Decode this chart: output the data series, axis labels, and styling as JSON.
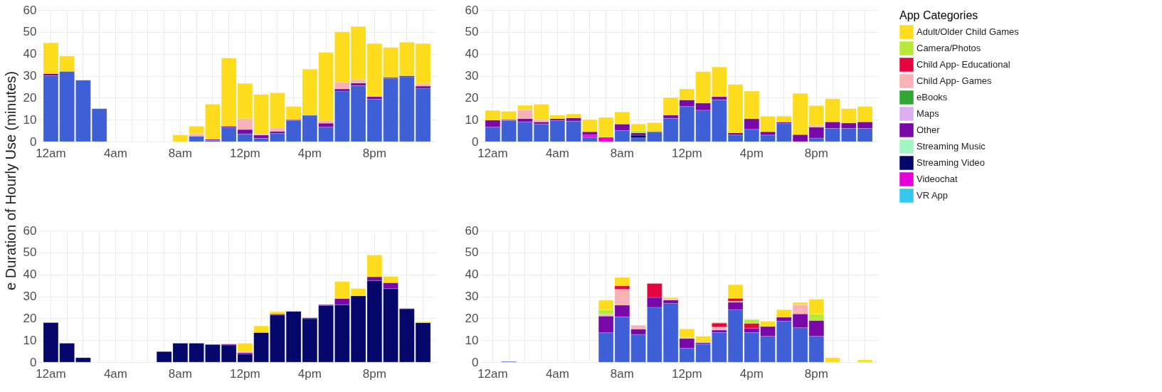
{
  "chart_data": [
    {
      "type": "bar",
      "stacked": true,
      "grid": true,
      "ylabel": "e Duration of Hourly Use (minutes)",
      "ylim": [
        0,
        60
      ],
      "yticks": [
        0,
        10,
        20,
        30,
        40,
        50,
        60
      ],
      "categories": [
        "12am",
        null,
        null,
        null,
        "4am",
        null,
        null,
        null,
        "8am",
        null,
        null,
        null,
        "12pm",
        null,
        null,
        null,
        "4pm",
        null,
        null,
        null,
        "8pm",
        null,
        null,
        null
      ],
      "series": [
        {
          "color": "#3f5fd7",
          "values": [
            30,
            32,
            28,
            15,
            null,
            null,
            null,
            null,
            null,
            2.5,
            0.5,
            6.3,
            3.5,
            1.5,
            3.7,
            9.7,
            12,
            6.6,
            23,
            25.5,
            19.3,
            28.8,
            29.5,
            24.3
          ]
        },
        {
          "color": "#7a08a8",
          "values": [
            1,
            null,
            null,
            null,
            null,
            null,
            null,
            null,
            null,
            null,
            0.5,
            0.7,
            2,
            1.5,
            1,
            0.3,
            null,
            1.8,
            1,
            1.2,
            1.2,
            0.5,
            0.5,
            1
          ]
        },
        {
          "color": "#f8b1b4",
          "values": [
            null,
            null,
            null,
            null,
            null,
            null,
            null,
            null,
            null,
            1,
            null,
            null,
            5,
            0.5,
            1.5,
            null,
            null,
            1.2,
            3,
            1.5,
            null,
            null,
            null,
            1
          ]
        },
        {
          "color": "#fcdc1c",
          "values": [
            14,
            7,
            null,
            null,
            null,
            null,
            null,
            null,
            3,
            3.5,
            16,
            31,
            16,
            18,
            16,
            6,
            21,
            31,
            23,
            24.3,
            24.2,
            13.6,
            15.3,
            18.4
          ]
        }
      ]
    },
    {
      "type": "bar",
      "stacked": true,
      "grid": true,
      "legend": "right",
      "legend_title": "App Categories",
      "ylim": [
        0,
        60
      ],
      "yticks": [
        0,
        10,
        20,
        30,
        40,
        50,
        60
      ],
      "categories": [
        "12am",
        null,
        null,
        null,
        "4am",
        null,
        null,
        null,
        "8am",
        null,
        null,
        null,
        "12pm",
        null,
        null,
        null,
        "4pm",
        null,
        null,
        null,
        "8pm",
        null,
        null,
        null
      ],
      "series": [
        {
          "color": "#3f5fd7",
          "values": [
            6.6,
            9.6,
            9,
            8,
            9.6,
            9.3,
            2,
            null,
            5,
            1.7,
            4.3,
            10.6,
            16,
            14.3,
            19,
            3,
            5.6,
            3,
            8.2,
            null,
            1.6,
            6,
            6,
            6
          ]
        },
        {
          "name": "VR App",
          "color": "#33c8ec",
          "values": [
            null,
            null,
            null,
            null,
            null,
            null,
            null,
            null,
            null,
            null,
            null,
            null,
            null,
            null,
            null,
            null,
            null,
            null,
            null,
            null,
            null,
            null,
            null,
            null
          ]
        },
        {
          "name": "Videochat",
          "color": "#e600d8",
          "values": [
            null,
            null,
            null,
            null,
            null,
            null,
            1,
            2,
            null,
            null,
            null,
            null,
            null,
            null,
            null,
            null,
            null,
            null,
            null,
            null,
            null,
            null,
            null,
            null
          ]
        },
        {
          "name": "Streaming Video",
          "color": "#05076b",
          "values": [
            null,
            null,
            null,
            null,
            null,
            null,
            null,
            null,
            null,
            1.2,
            null,
            null,
            null,
            null,
            null,
            null,
            null,
            null,
            null,
            null,
            null,
            null,
            null,
            null
          ]
        },
        {
          "name": "Streaming Music",
          "color": "#a0f5c0",
          "values": [
            null,
            null,
            null,
            null,
            null,
            null,
            null,
            null,
            null,
            null,
            null,
            null,
            null,
            null,
            null,
            null,
            null,
            null,
            null,
            null,
            null,
            null,
            null,
            null
          ]
        },
        {
          "color": "#ef6b2b",
          "values": [
            null,
            null,
            null,
            null,
            null,
            null,
            null,
            null,
            null,
            null,
            null,
            null,
            null,
            null,
            null,
            null,
            null,
            null,
            null,
            null,
            null,
            null,
            null,
            null
          ]
        },
        {
          "name": "Other",
          "color": "#7a08a8",
          "values": [
            3.2,
            0.4,
            1.5,
            1,
            0.8,
            1.5,
            1.5,
            null,
            3,
            1.1,
            0.3,
            1.5,
            3,
            3.3,
            1.5,
            1,
            4.8,
            1.5,
            0.7,
            3.2,
            5,
            3,
            2.5,
            3
          ]
        },
        {
          "name": "Maps",
          "color": "#dcb0f0",
          "values": [
            null,
            null,
            null,
            null,
            null,
            null,
            null,
            null,
            null,
            null,
            null,
            null,
            null,
            null,
            null,
            null,
            null,
            null,
            null,
            null,
            null,
            null,
            null,
            null
          ]
        },
        {
          "name": "eBooks",
          "color": "#33a532",
          "values": [
            null,
            null,
            null,
            null,
            null,
            null,
            null,
            null,
            null,
            null,
            null,
            null,
            null,
            null,
            null,
            null,
            null,
            null,
            null,
            null,
            null,
            null,
            null,
            null
          ]
        },
        {
          "name": "Child App- Games",
          "color": "#f8b1b4",
          "values": [
            null,
            null,
            4,
            1,
            null,
            null,
            null,
            null,
            null,
            null,
            null,
            null,
            null,
            null,
            null,
            null,
            null,
            null,
            null,
            null,
            0.8,
            null,
            null,
            null
          ]
        },
        {
          "name": "Child App- Educational",
          "color": "#e3063f",
          "values": [
            null,
            null,
            null,
            null,
            null,
            null,
            null,
            null,
            null,
            null,
            null,
            null,
            null,
            null,
            null,
            null,
            null,
            null,
            null,
            null,
            null,
            null,
            null,
            null
          ]
        },
        {
          "name": "Camera/Photos",
          "color": "#b8e83a",
          "values": [
            null,
            null,
            null,
            null,
            null,
            null,
            null,
            null,
            null,
            1,
            null,
            null,
            null,
            null,
            null,
            null,
            null,
            null,
            null,
            null,
            null,
            null,
            null,
            null
          ]
        },
        {
          "name": "Adult/Older Child Games",
          "color": "#fcdc1c",
          "values": [
            4.4,
            3.8,
            2,
            7,
            1.6,
            1.8,
            5.5,
            9,
            5.5,
            3,
            4,
            8,
            5,
            14.3,
            13.5,
            22,
            12.6,
            7,
            2.7,
            18.8,
            9,
            10.5,
            6.5,
            7
          ]
        }
      ]
    },
    {
      "type": "bar",
      "stacked": true,
      "grid": true,
      "ylim": [
        0,
        60
      ],
      "yticks": [
        0,
        10,
        20,
        30,
        40,
        50,
        60
      ],
      "categories": [
        "12am",
        null,
        null,
        null,
        "4am",
        null,
        null,
        null,
        "8am",
        null,
        null,
        null,
        "12pm",
        null,
        null,
        null,
        "4pm",
        null,
        null,
        null,
        "8pm",
        null,
        null,
        null
      ],
      "series": [
        {
          "color": "#05076b",
          "values": [
            18,
            8.6,
            2,
            null,
            null,
            null,
            null,
            4.8,
            8.6,
            8.6,
            8,
            7.8,
            3.8,
            13.5,
            21.5,
            23.1,
            19.8,
            25.9,
            26.2,
            30.2,
            37.2,
            33.5,
            24.3,
            18
          ]
        },
        {
          "color": "#7a08a8",
          "values": [
            null,
            null,
            null,
            null,
            null,
            null,
            null,
            null,
            null,
            null,
            null,
            0.4,
            0.6,
            null,
            0.5,
            null,
            0.4,
            0.3,
            2.8,
            null,
            1.7,
            2.7,
            null,
            null
          ]
        },
        {
          "color": "#f8b1b4",
          "values": [
            null,
            null,
            null,
            null,
            null,
            null,
            null,
            null,
            null,
            null,
            null,
            null,
            0.4,
            null,
            null,
            null,
            null,
            null,
            null,
            null,
            null,
            null,
            0.4,
            null
          ]
        },
        {
          "color": "#fcdc1c",
          "values": [
            null,
            null,
            null,
            null,
            null,
            null,
            null,
            null,
            null,
            null,
            null,
            null,
            3.8,
            3,
            1,
            null,
            null,
            null,
            7.7,
            3.3,
            9.9,
            2.9,
            null,
            0.4
          ]
        }
      ]
    },
    {
      "type": "bar",
      "stacked": true,
      "grid": true,
      "ylim": [
        0,
        60
      ],
      "yticks": [
        0,
        10,
        20,
        30,
        40,
        50,
        60
      ],
      "categories": [
        "12am",
        null,
        null,
        null,
        "4am",
        null,
        null,
        null,
        "8am",
        null,
        null,
        null,
        "12pm",
        null,
        null,
        null,
        "4pm",
        null,
        null,
        null,
        "8pm",
        null,
        null,
        null
      ],
      "series": [
        {
          "color": "#3f5fd7",
          "values": [
            null,
            0.3,
            null,
            null,
            null,
            null,
            null,
            13.4,
            20.6,
            12.6,
            25,
            26.8,
            6.3,
            8.3,
            13.5,
            24,
            13.5,
            11.8,
            18.6,
            15.7,
            11.8,
            null,
            null,
            null
          ]
        },
        {
          "color": "#7a08a8",
          "values": [
            null,
            null,
            null,
            null,
            null,
            null,
            null,
            7.6,
            5.4,
            2.5,
            4.5,
            1.5,
            4.5,
            0.6,
            1.1,
            3.3,
            2,
            4.5,
            1.9,
            6.3,
            7.2,
            null,
            null,
            null
          ]
        },
        {
          "color": "#f8b1b4",
          "values": [
            null,
            null,
            null,
            null,
            null,
            null,
            null,
            0.8,
            7.2,
            1.7,
            null,
            0.5,
            null,
            null,
            1.4,
            0.5,
            null,
            null,
            null,
            4.2,
            null,
            null,
            null,
            null
          ]
        },
        {
          "color": "#e3063f",
          "values": [
            null,
            null,
            null,
            null,
            null,
            null,
            null,
            null,
            1.6,
            null,
            6.3,
            null,
            null,
            null,
            1.8,
            1.3,
            2.2,
            null,
            null,
            null,
            null,
            null,
            null,
            null
          ]
        },
        {
          "color": "#b8e83a",
          "values": [
            null,
            null,
            null,
            null,
            null,
            null,
            null,
            2.1,
            null,
            null,
            null,
            null,
            0.5,
            0.5,
            null,
            null,
            1.7,
            null,
            null,
            null,
            2.9,
            null,
            null,
            null
          ]
        },
        {
          "color": "#fcdc1c",
          "values": [
            null,
            null,
            null,
            null,
            null,
            null,
            null,
            4.3,
            3.8,
            null,
            null,
            0.6,
            3.8,
            2.4,
            0.4,
            6.2,
            null,
            2.3,
            3.4,
            1,
            6.8,
            2,
            null,
            1
          ]
        }
      ]
    }
  ]
}
